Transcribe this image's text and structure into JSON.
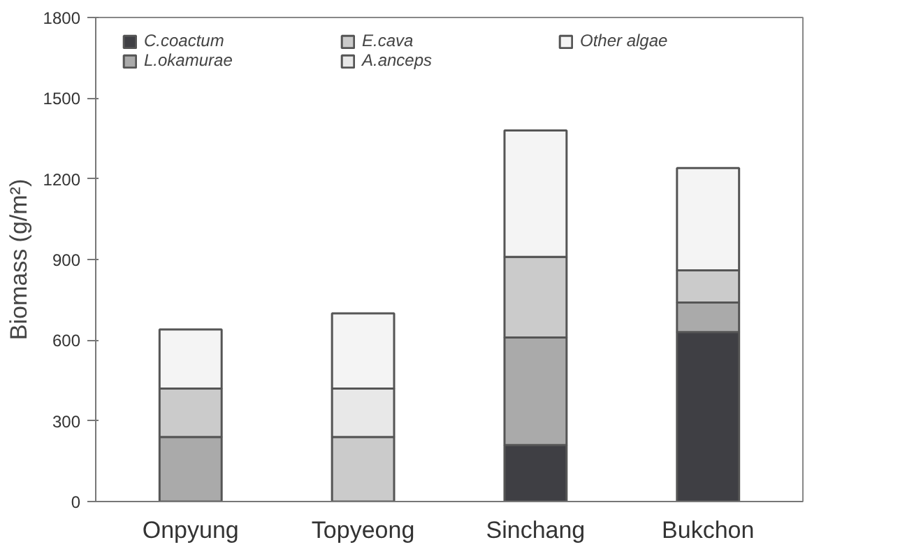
{
  "chart_data": {
    "type": "bar",
    "stacked": true,
    "ylabel": "Biomass (g/m²)",
    "categories": [
      "Onpyung",
      "Topyeong",
      "Sinchang",
      "Bukchon"
    ],
    "ylim": [
      0,
      1800
    ],
    "yticks": [
      0,
      300,
      600,
      900,
      1200,
      1500,
      1800
    ],
    "grid": false,
    "legend": "top",
    "series": [
      {
        "name": "C.coactum",
        "color": "#3f3f44",
        "values": [
          0,
          0,
          210,
          630
        ]
      },
      {
        "name": "L.okamurae",
        "color": "#aaaaaa",
        "values": [
          240,
          0,
          400,
          110
        ]
      },
      {
        "name": "E.cava",
        "color": "#cbcbcb",
        "values": [
          180,
          240,
          300,
          120
        ]
      },
      {
        "name": "A.anceps",
        "color": "#e8e8e8",
        "values": [
          0,
          180,
          0,
          0
        ]
      },
      {
        "name": "Other algae",
        "color": "#f4f4f4",
        "values": [
          220,
          280,
          470,
          380
        ]
      }
    ]
  }
}
